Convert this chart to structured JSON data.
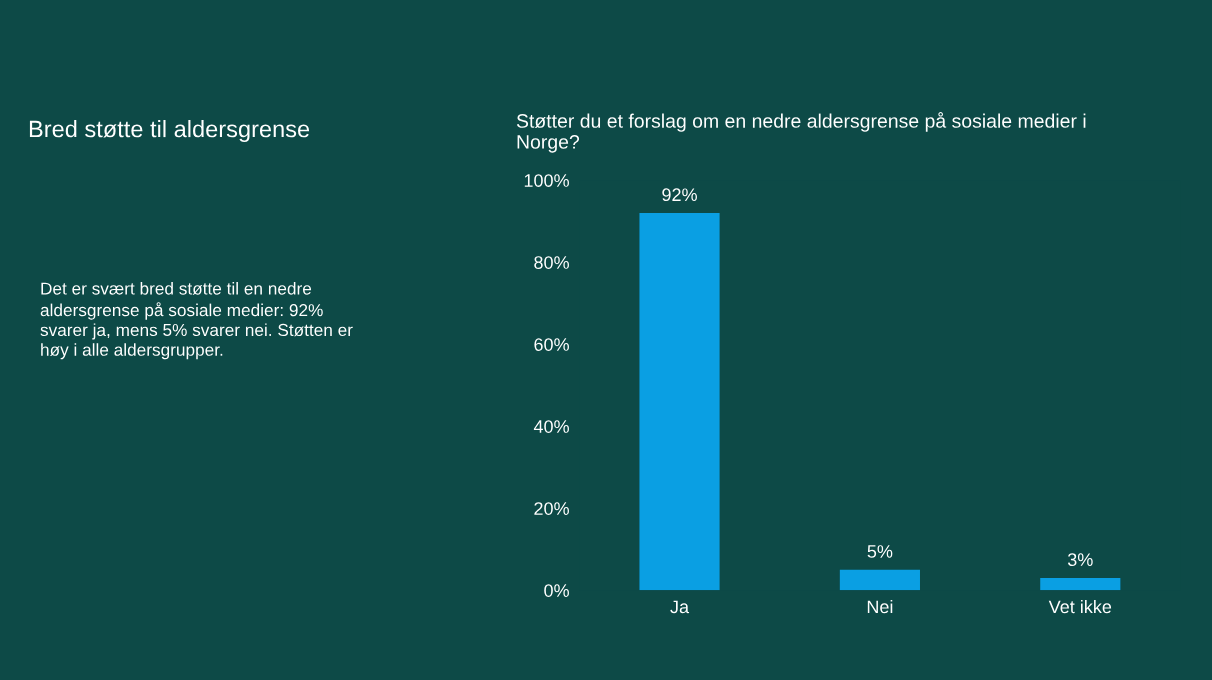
{
  "chart_data": {
    "type": "bar",
    "title": "Støtter du et forslag om en nedre aldersgrense på sosiale medier i\nNorge?",
    "annotations": [
      "Bred støtte til aldersgrense",
      "Det er svært bred støtte til en nedre\naldersgrense på sosiale medier: 92%\nsvarer ja, mens 5% svarer nei. Støtten er\nhøy i alle aldersgrupper."
    ],
    "categories": [
      "Ja",
      "Nei",
      "Vet ikke"
    ],
    "values": [
      92,
      5,
      3
    ],
    "value_labels": [
      "92%",
      "5%",
      "3%"
    ],
    "color": "#0a9fe3",
    "ylim": [
      0,
      100
    ],
    "yticks": [
      {
        "value": 0,
        "label": "0%"
      },
      {
        "value": 20,
        "label": "20%"
      },
      {
        "value": 40,
        "label": "40%"
      },
      {
        "value": 60,
        "label": "60%"
      },
      {
        "value": 80,
        "label": "80%"
      },
      {
        "value": 100,
        "label": "100%"
      }
    ],
    "grid": false,
    "legend": false
  }
}
